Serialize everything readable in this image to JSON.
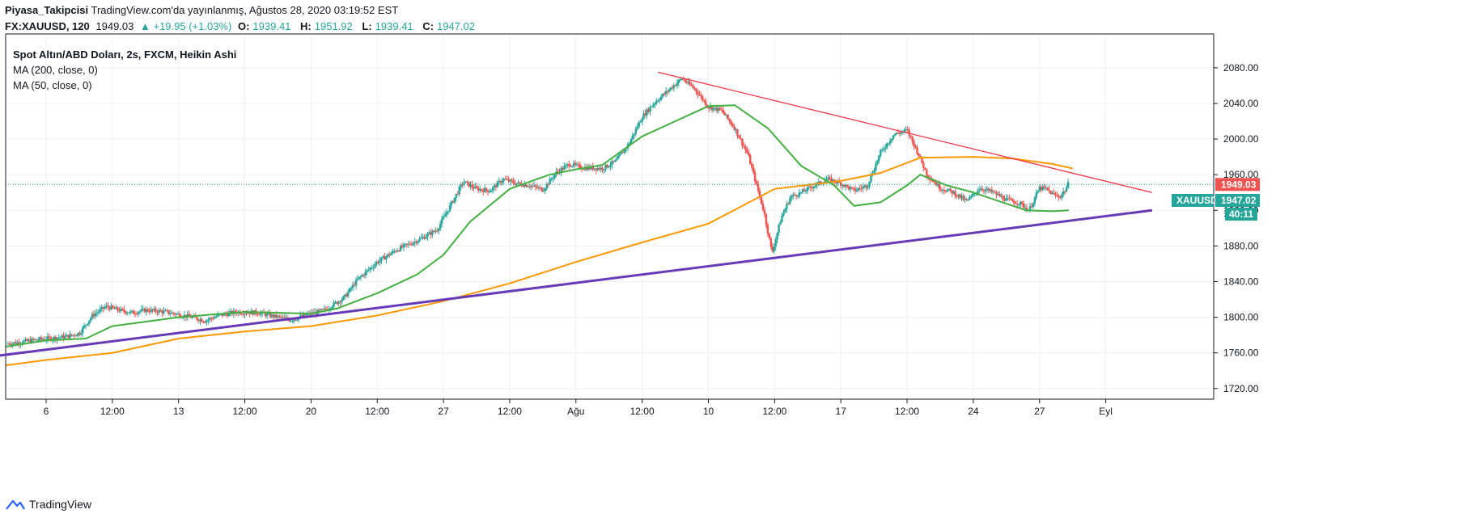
{
  "header": {
    "author": "Piyasa_Takipcisi",
    "published": "TradingView.com'da yayınlanmış, Ağustos 28, 2020 03:19:52 EST",
    "symbol": "FX:XAUUSD, 120",
    "last": "1949.03",
    "change": "▲ +19.95 (+1.03%)",
    "o_label": "O:",
    "o": "1939.41",
    "h_label": "H:",
    "h": "1951.92",
    "l_label": "L:",
    "l": "1939.41",
    "c_label": "C:",
    "c": "1947.02"
  },
  "legend": {
    "title": "Spot Altın/ABD Doları, 2s, FXCM, Heikin Ashi",
    "ma200": "MA (200, close, 0)",
    "ma50": "MA (50, close, 0)"
  },
  "footer": {
    "brand": "TradingView",
    "logo_icon": "tradingview-cloud-icon"
  },
  "chart_data": {
    "type": "candlestick",
    "y_ticks": [
      1720,
      1760,
      1800,
      1840,
      1880,
      1920,
      1960,
      2000,
      2040,
      2080
    ],
    "y_tick_labels": [
      "1720.00",
      "1760.00",
      "1800.00",
      "1840.00",
      "1880.00",
      "1920.00",
      "1960.00",
      "2000.00",
      "2040.00",
      "2080.00"
    ],
    "ylim": [
      1708,
      2118
    ],
    "x_ticks": [
      {
        "d": 6.0,
        "label": "6"
      },
      {
        "d": 6.5,
        "label": "12:00"
      },
      {
        "d": 7.0,
        "label": "13"
      },
      {
        "d": 7.5,
        "label": "12:00"
      },
      {
        "d": 8.0,
        "label": "20"
      },
      {
        "d": 8.5,
        "label": "12:00"
      },
      {
        "d": 9.0,
        "label": "27"
      },
      {
        "d": 9.5,
        "label": "12:00"
      },
      {
        "d": 10.0,
        "label": "Ağu"
      },
      {
        "d": 10.5,
        "label": "12:00"
      },
      {
        "d": 11.0,
        "label": "10"
      },
      {
        "d": 11.5,
        "label": "12:00"
      },
      {
        "d": 12.0,
        "label": "17"
      },
      {
        "d": 12.5,
        "label": "12:00"
      },
      {
        "d": 13.0,
        "label": "24"
      },
      {
        "d": 13.5,
        "label": "27"
      },
      {
        "d": 14.0,
        "label": "Eyl"
      }
    ],
    "price_path": [
      [
        5.7,
        1770
      ],
      [
        5.85,
        1773
      ],
      [
        6.0,
        1776
      ],
      [
        6.15,
        1778
      ],
      [
        6.25,
        1782
      ],
      [
        6.35,
        1802
      ],
      [
        6.45,
        1812
      ],
      [
        6.55,
        1808
      ],
      [
        6.65,
        1805
      ],
      [
        6.75,
        1808
      ],
      [
        6.9,
        1806
      ],
      [
        7.1,
        1800
      ],
      [
        7.2,
        1796
      ],
      [
        7.3,
        1802
      ],
      [
        7.45,
        1806
      ],
      [
        7.6,
        1805
      ],
      [
        7.75,
        1800
      ],
      [
        7.85,
        1797
      ],
      [
        7.95,
        1802
      ],
      [
        8.1,
        1808
      ],
      [
        8.25,
        1822
      ],
      [
        8.35,
        1842
      ],
      [
        8.5,
        1862
      ],
      [
        8.65,
        1876
      ],
      [
        8.8,
        1886
      ],
      [
        8.95,
        1898
      ],
      [
        9.05,
        1925
      ],
      [
        9.15,
        1952
      ],
      [
        9.25,
        1944
      ],
      [
        9.35,
        1942
      ],
      [
        9.45,
        1955
      ],
      [
        9.55,
        1950
      ],
      [
        9.65,
        1948
      ],
      [
        9.75,
        1943
      ],
      [
        9.85,
        1962
      ],
      [
        9.95,
        1972
      ],
      [
        10.05,
        1968
      ],
      [
        10.2,
        1967
      ],
      [
        10.3,
        1975
      ],
      [
        10.4,
        1995
      ],
      [
        10.5,
        2025
      ],
      [
        10.6,
        2042
      ],
      [
        10.7,
        2055
      ],
      [
        10.8,
        2068
      ],
      [
        10.9,
        2056
      ],
      [
        11.0,
        2036
      ],
      [
        11.1,
        2032
      ],
      [
        11.2,
        2012
      ],
      [
        11.3,
        1982
      ],
      [
        11.36,
        1950
      ],
      [
        11.42,
        1918
      ],
      [
        11.48,
        1872
      ],
      [
        11.55,
        1912
      ],
      [
        11.62,
        1935
      ],
      [
        11.7,
        1940
      ],
      [
        11.8,
        1948
      ],
      [
        11.9,
        1955
      ],
      [
        12.0,
        1950
      ],
      [
        12.1,
        1942
      ],
      [
        12.2,
        1948
      ],
      [
        12.3,
        1985
      ],
      [
        12.4,
        2005
      ],
      [
        12.5,
        2010
      ],
      [
        12.58,
        1985
      ],
      [
        12.65,
        1960
      ],
      [
        12.75,
        1945
      ],
      [
        12.85,
        1940
      ],
      [
        12.95,
        1930
      ],
      [
        13.05,
        1945
      ],
      [
        13.15,
        1940
      ],
      [
        13.25,
        1932
      ],
      [
        13.35,
        1928
      ],
      [
        13.42,
        1920
      ],
      [
        13.5,
        1945
      ],
      [
        13.55,
        1944
      ],
      [
        13.6,
        1938
      ],
      [
        13.65,
        1935
      ],
      [
        13.7,
        1944
      ],
      [
        13.72,
        1951
      ]
    ],
    "ma200": [
      [
        5.6,
        1746
      ],
      [
        6.0,
        1752
      ],
      [
        6.5,
        1760
      ],
      [
        7.0,
        1776
      ],
      [
        7.5,
        1784
      ],
      [
        8.0,
        1790
      ],
      [
        8.5,
        1802
      ],
      [
        9.0,
        1818
      ],
      [
        9.5,
        1838
      ],
      [
        10.0,
        1862
      ],
      [
        10.5,
        1884
      ],
      [
        11.0,
        1905
      ],
      [
        11.5,
        1944
      ],
      [
        12.0,
        1953
      ],
      [
        12.3,
        1962
      ],
      [
        12.6,
        1979
      ],
      [
        13.0,
        1980
      ],
      [
        13.3,
        1978
      ],
      [
        13.6,
        1972
      ],
      [
        13.75,
        1967
      ]
    ],
    "ma50": [
      [
        5.6,
        1767
      ],
      [
        6.0,
        1774
      ],
      [
        6.3,
        1776
      ],
      [
        6.5,
        1790
      ],
      [
        7.0,
        1800
      ],
      [
        7.5,
        1806
      ],
      [
        8.0,
        1804
      ],
      [
        8.2,
        1810
      ],
      [
        8.5,
        1827
      ],
      [
        8.8,
        1848
      ],
      [
        9.0,
        1870
      ],
      [
        9.2,
        1907
      ],
      [
        9.5,
        1944
      ],
      [
        9.8,
        1960
      ],
      [
        10.0,
        1966
      ],
      [
        10.2,
        1971
      ],
      [
        10.5,
        2003
      ],
      [
        10.75,
        2020
      ],
      [
        11.0,
        2037
      ],
      [
        11.2,
        2038
      ],
      [
        11.45,
        2012
      ],
      [
        11.7,
        1970
      ],
      [
        11.95,
        1948
      ],
      [
        12.1,
        1925
      ],
      [
        12.3,
        1929
      ],
      [
        12.5,
        1948
      ],
      [
        12.6,
        1960
      ],
      [
        12.8,
        1948
      ],
      [
        13.0,
        1940
      ],
      [
        13.2,
        1930
      ],
      [
        13.4,
        1920
      ],
      [
        13.6,
        1919
      ],
      [
        13.72,
        1920
      ]
    ],
    "trendline_upper": [
      [
        10.62,
        2075
      ],
      [
        14.35,
        1940
      ]
    ],
    "trendline_lower": [
      [
        5.65,
        1757
      ],
      [
        14.35,
        1920
      ]
    ],
    "last_price_line": 1949.03,
    "price_labels": {
      "last": "1949.03",
      "symbol": "XAUUSD",
      "close": "1947.02",
      "countdown": "40:11",
      "hidden_tick": "1"
    },
    "colors": {
      "up": "#26a69a",
      "down": "#ef5350",
      "ma200": "#ff9800",
      "ma50": "#43b041",
      "trend_upper": "#f23645",
      "trend_lower": "#673ab7",
      "grid": "#eef0f3"
    },
    "grid": true
  }
}
